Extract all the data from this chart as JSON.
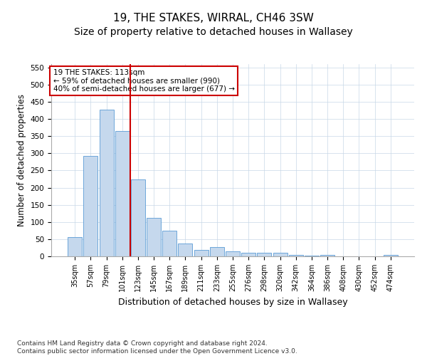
{
  "title": "19, THE STAKES, WIRRAL, CH46 3SW",
  "subtitle": "Size of property relative to detached houses in Wallasey",
  "xlabel": "Distribution of detached houses by size in Wallasey",
  "ylabel": "Number of detached properties",
  "categories": [
    "35sqm",
    "57sqm",
    "79sqm",
    "101sqm",
    "123sqm",
    "145sqm",
    "167sqm",
    "189sqm",
    "211sqm",
    "233sqm",
    "255sqm",
    "276sqm",
    "298sqm",
    "320sqm",
    "342sqm",
    "364sqm",
    "386sqm",
    "408sqm",
    "430sqm",
    "452sqm",
    "474sqm"
  ],
  "values": [
    55,
    292,
    428,
    365,
    225,
    113,
    75,
    38,
    18,
    27,
    15,
    10,
    10,
    10,
    5,
    3,
    5,
    0,
    0,
    0,
    5
  ],
  "bar_color": "#c5d8ed",
  "bar_edge_color": "#5b9bd5",
  "vline_x": 3.5,
  "vline_color": "#cc0000",
  "annotation_text": "19 THE STAKES: 113sqm\n← 59% of detached houses are smaller (990)\n40% of semi-detached houses are larger (677) →",
  "annotation_box_color": "#ffffff",
  "annotation_box_edge": "#cc0000",
  "footer": "Contains HM Land Registry data © Crown copyright and database right 2024.\nContains public sector information licensed under the Open Government Licence v3.0.",
  "ylim": [
    0,
    560
  ],
  "yticks": [
    0,
    50,
    100,
    150,
    200,
    250,
    300,
    350,
    400,
    450,
    500,
    550
  ],
  "title_fontsize": 11,
  "subtitle_fontsize": 10,
  "xlabel_fontsize": 9,
  "ylabel_fontsize": 8.5,
  "annotation_fontsize": 7.5,
  "footer_fontsize": 6.5,
  "background_color": "#ffffff",
  "grid_color": "#c8d8e8"
}
